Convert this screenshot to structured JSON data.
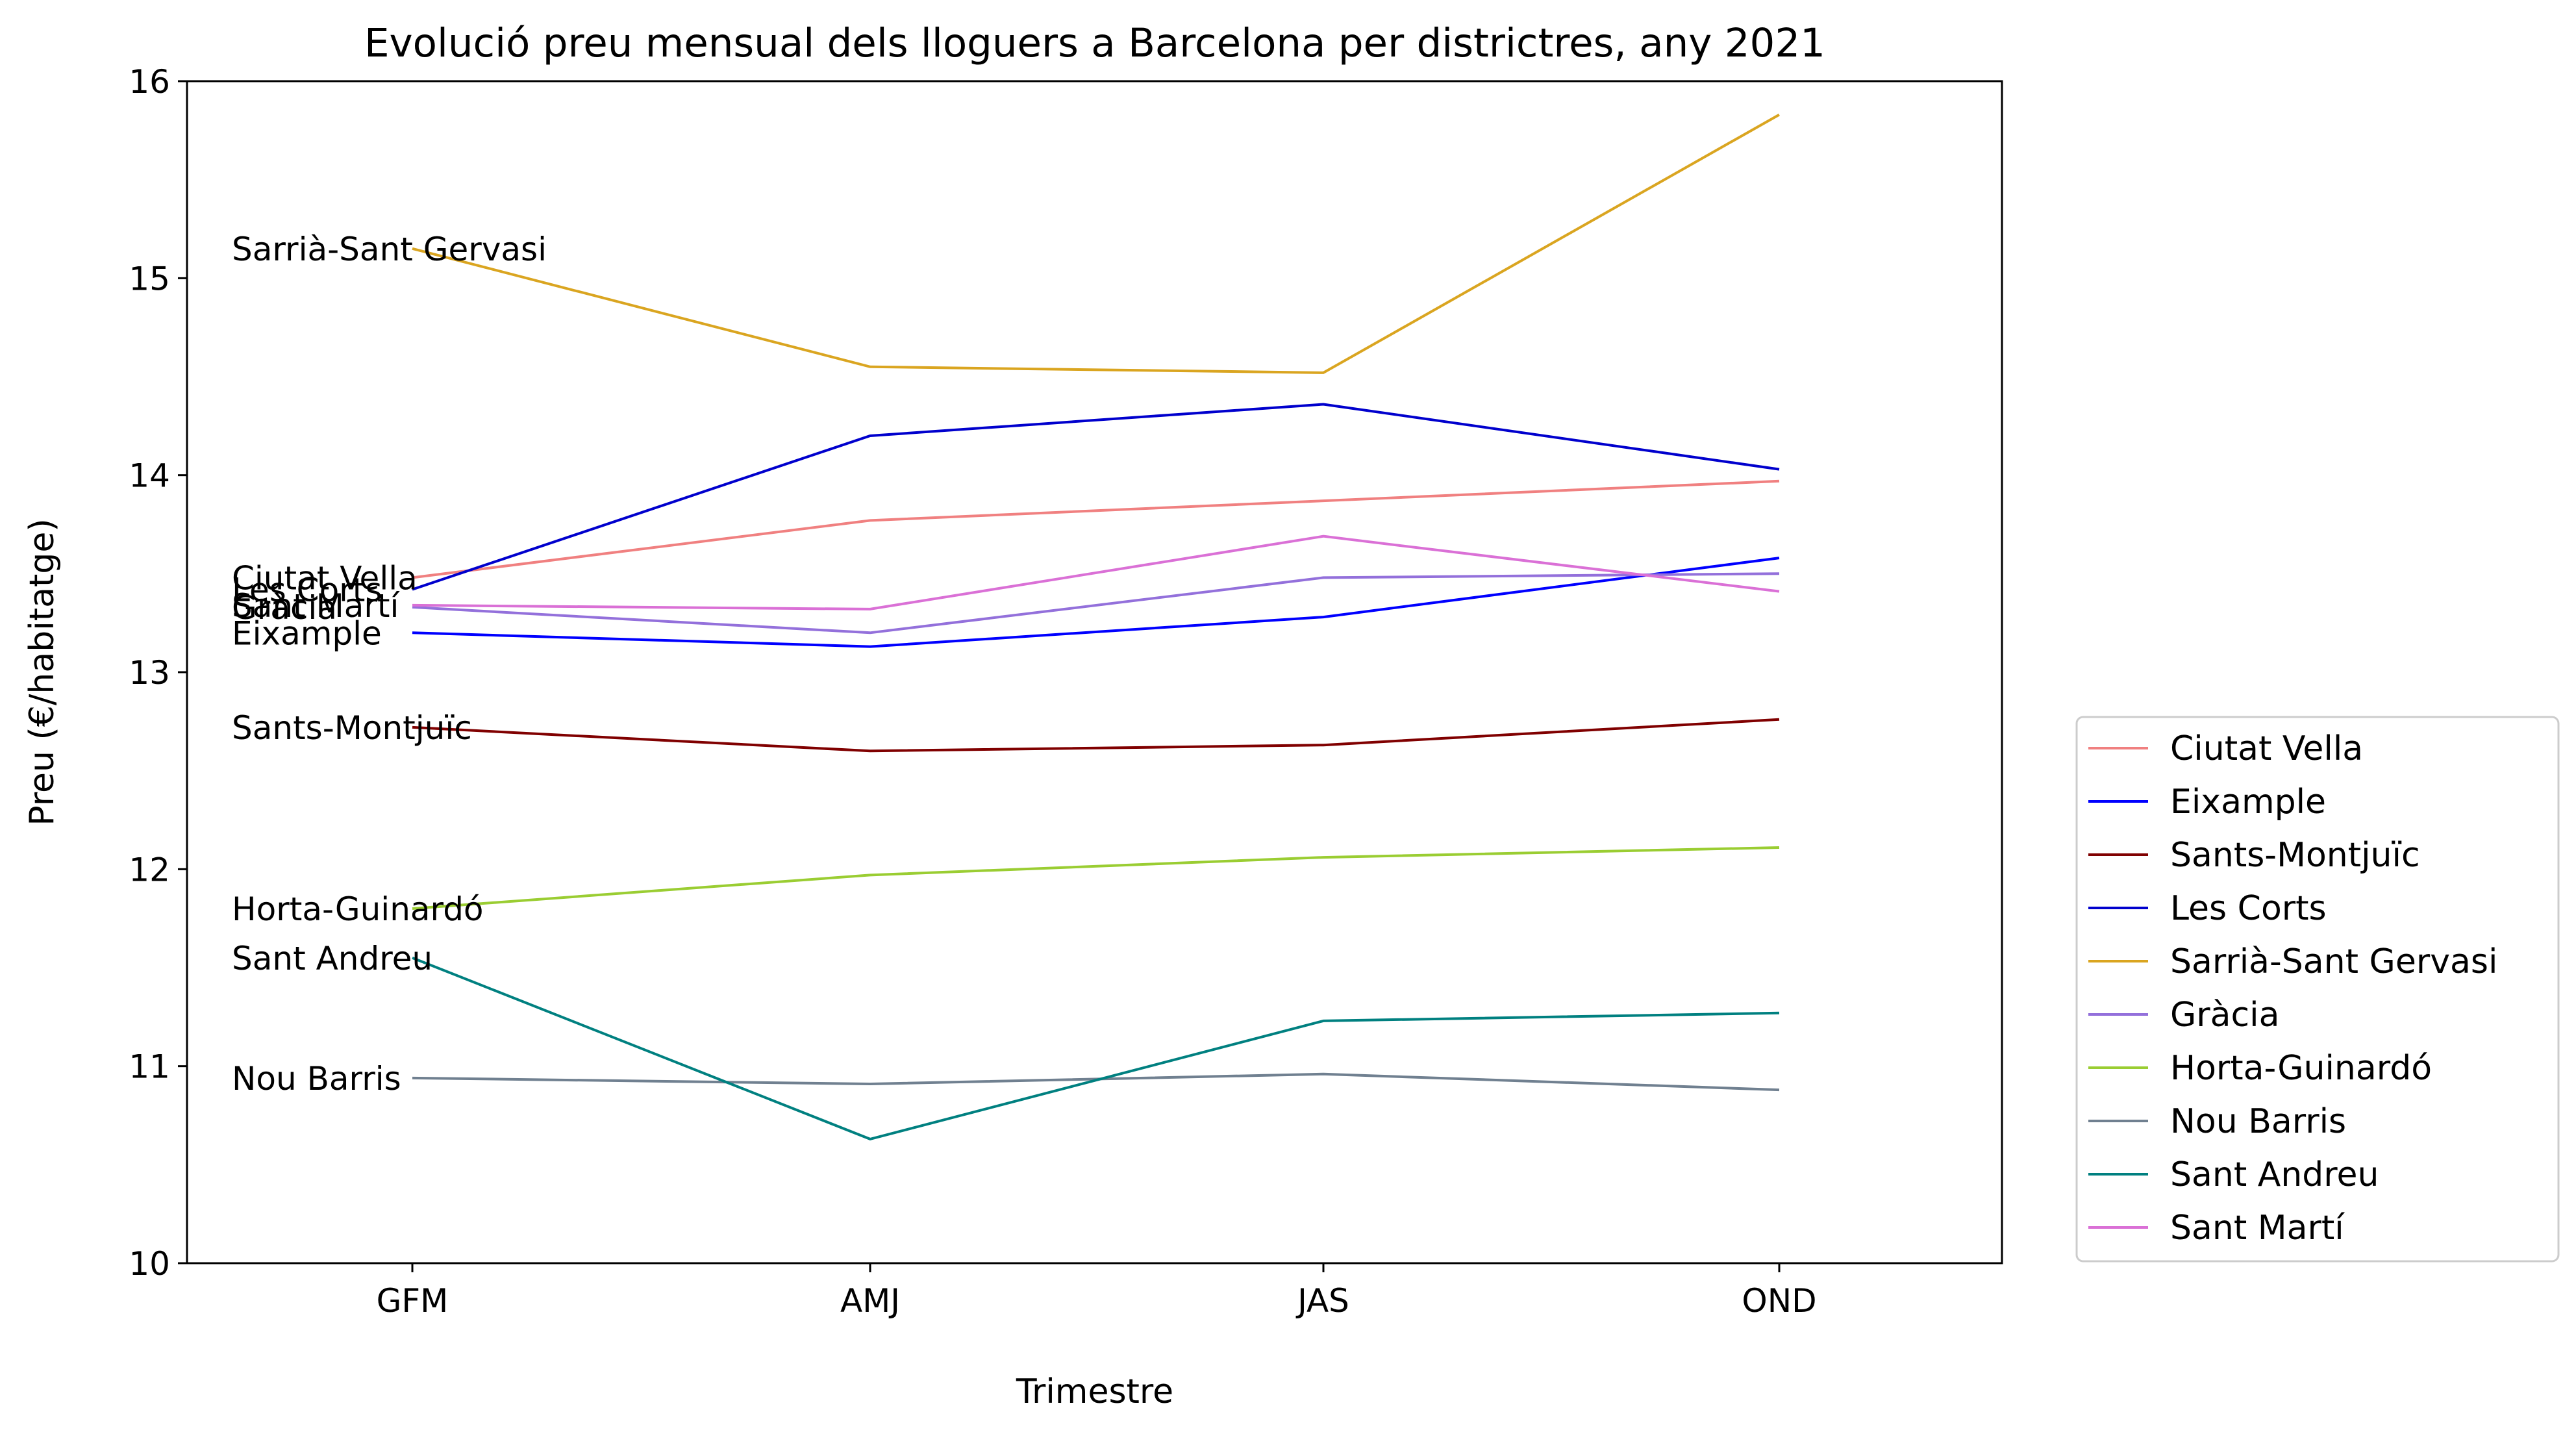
{
  "chart_data": {
    "type": "line",
    "title": "Evolució preu mensual dels lloguers a Barcelona per districtres, any 2021",
    "xlabel": "Trimestre",
    "ylabel": "Preu (€/habitatge)",
    "categories": [
      "GFM",
      "AMJ",
      "JAS",
      "OND"
    ],
    "ylim": [
      10,
      16
    ],
    "yticks": [
      10,
      11,
      12,
      13,
      14,
      15,
      16
    ],
    "grid": false,
    "legend_position": "right",
    "series": [
      {
        "name": "Ciutat Vella",
        "color": "#f08080",
        "values": [
          13.48,
          13.77,
          13.87,
          13.97
        ]
      },
      {
        "name": "Eixample",
        "color": "#0000ff",
        "values": [
          13.2,
          13.13,
          13.28,
          13.58
        ]
      },
      {
        "name": "Sants-Montjuïc",
        "color": "#800000",
        "values": [
          12.72,
          12.6,
          12.63,
          12.76
        ]
      },
      {
        "name": "Les Corts",
        "color": "#0000cd",
        "values": [
          13.42,
          14.2,
          14.36,
          14.03
        ]
      },
      {
        "name": "Sarrià-Sant Gervasi",
        "color": "#daa520",
        "values": [
          15.15,
          14.55,
          14.52,
          15.83
        ]
      },
      {
        "name": "Gràcia",
        "color": "#9370db",
        "values": [
          13.33,
          13.2,
          13.48,
          13.5
        ]
      },
      {
        "name": "Horta-Guinardó",
        "color": "#9acd32",
        "values": [
          11.8,
          11.97,
          12.06,
          12.11
        ]
      },
      {
        "name": "Nou Barris",
        "color": "#708090",
        "values": [
          10.94,
          10.91,
          10.96,
          10.88
        ]
      },
      {
        "name": "Sant Andreu",
        "color": "#008080",
        "values": [
          11.55,
          10.63,
          11.23,
          11.27
        ]
      },
      {
        "name": "Sant Martí",
        "color": "#da70d6",
        "values": [
          13.34,
          13.32,
          13.69,
          13.41
        ]
      }
    ]
  }
}
